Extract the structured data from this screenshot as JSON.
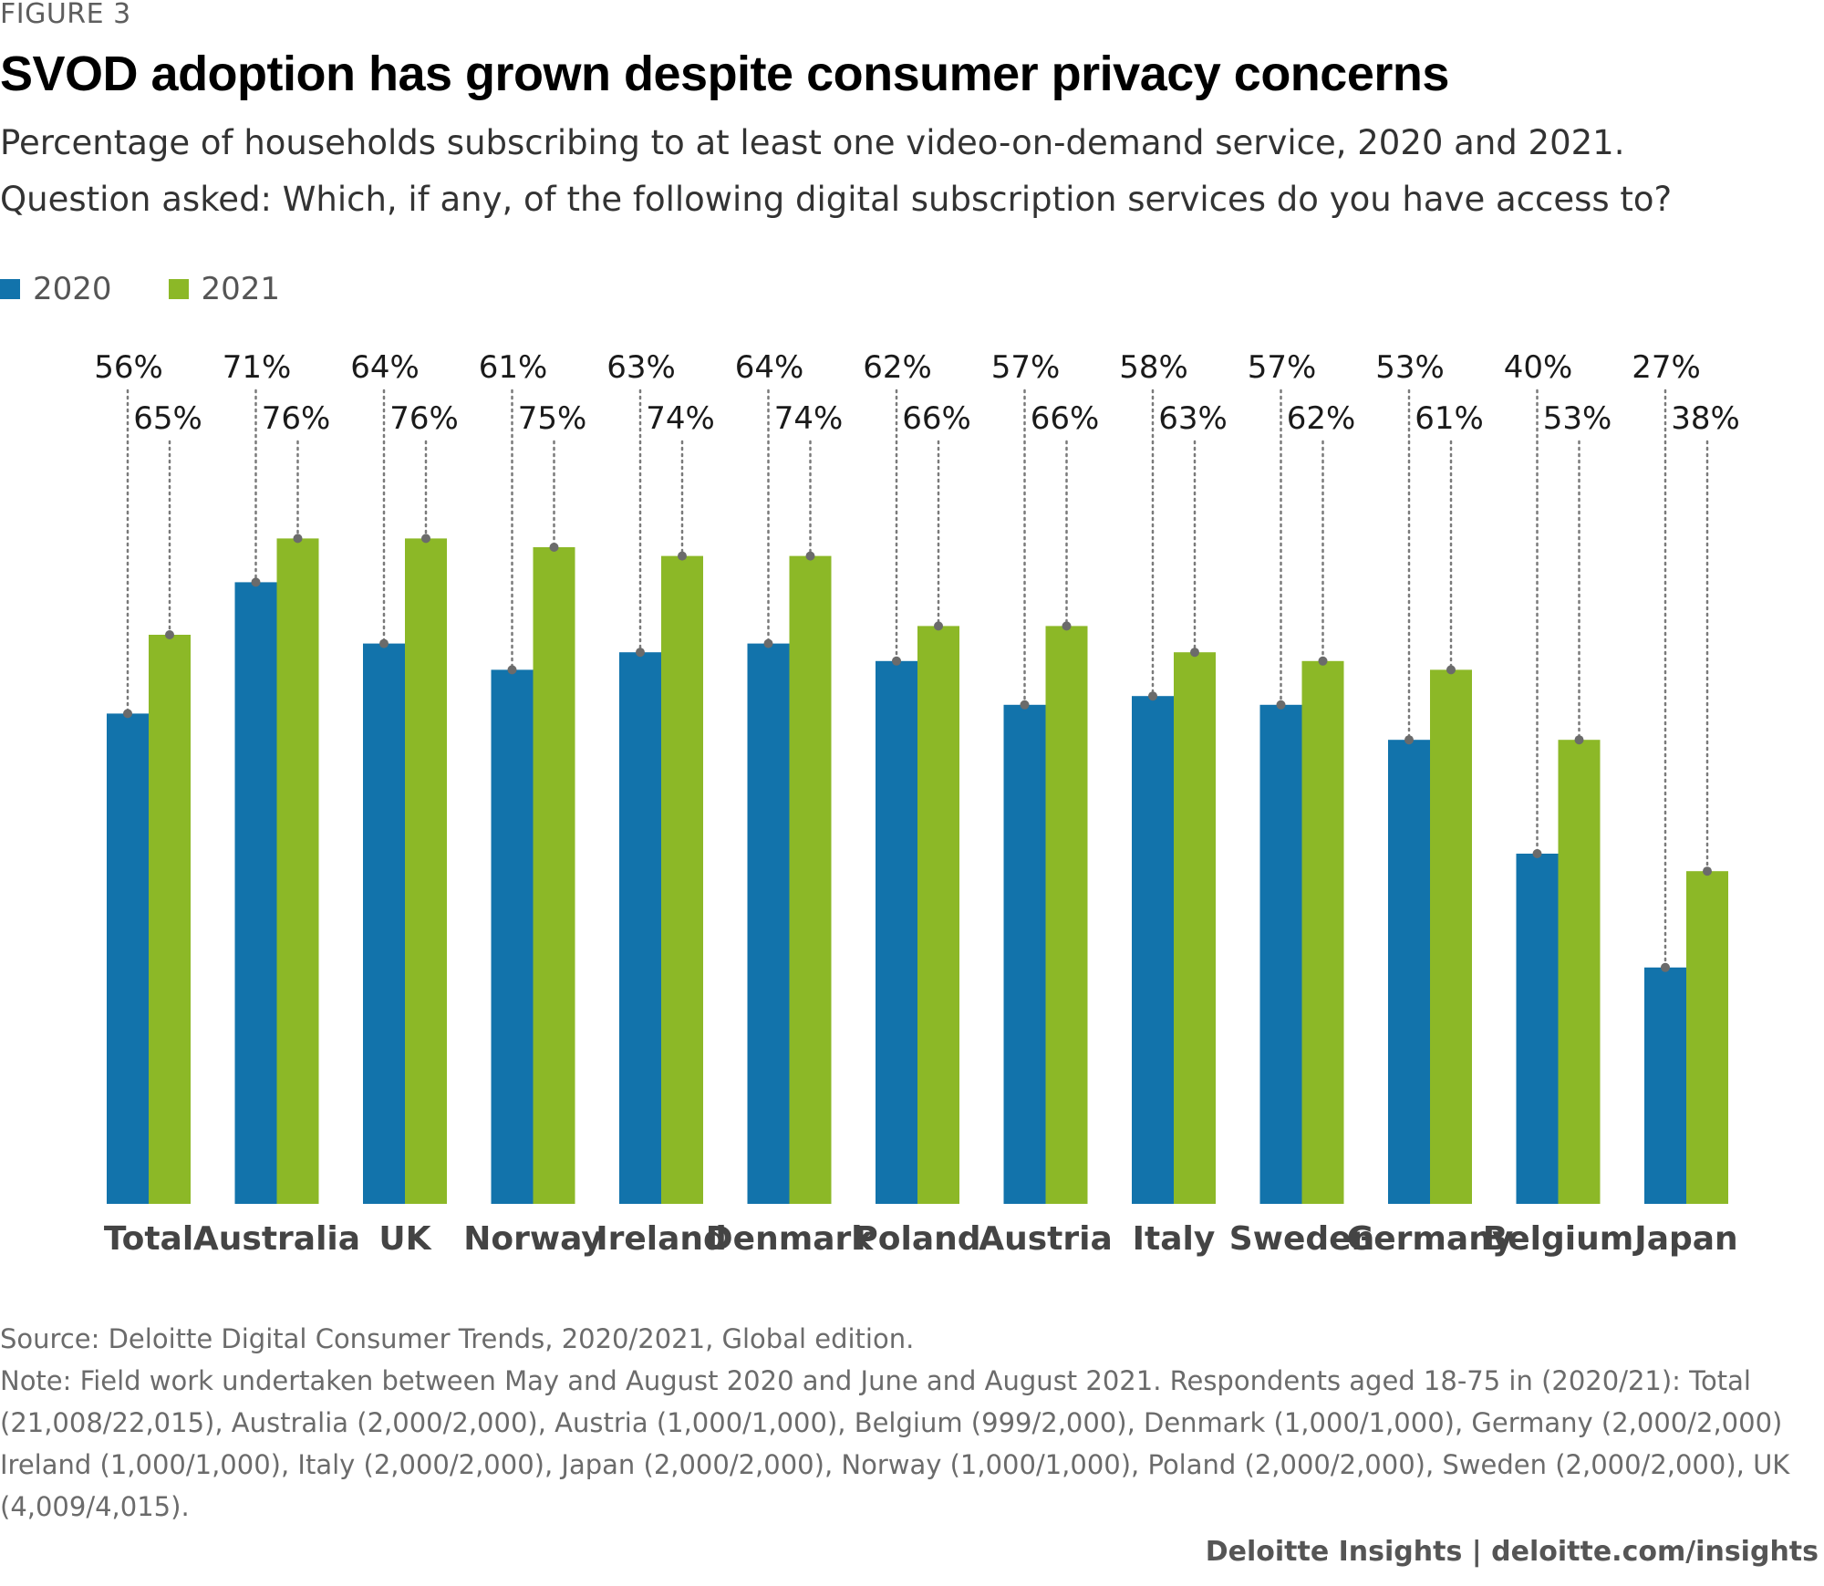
{
  "figure_label": "FIGURE 3",
  "title": "SVOD adoption has grown despite consumer privacy concerns",
  "subtitle_1": "Percentage of households subscribing to at least one video-on-demand service, 2020 and 2021.",
  "subtitle_2": "Question asked: Which, if any, of the following digital subscription services do you have access to?",
  "colors": {
    "series_2020": "#1273AB",
    "series_2021": "#8CB827",
    "marker": "#6b6b6b"
  },
  "chart_data": {
    "type": "bar",
    "title": "SVOD adoption has grown despite consumer privacy concerns",
    "xlabel": "",
    "ylabel": "",
    "ylim": [
      0,
      80
    ],
    "grid": false,
    "legend": "top-left",
    "categories": [
      "Total",
      "Australia",
      "UK",
      "Norway",
      "Ireland",
      "Denmark",
      "Poland",
      "Austria",
      "Italy",
      "Sweden",
      "Germany",
      "Belgium",
      "Japan"
    ],
    "series": [
      {
        "name": "2020",
        "values": [
          56,
          71,
          64,
          61,
          63,
          64,
          62,
          57,
          58,
          57,
          53,
          40,
          27
        ]
      },
      {
        "name": "2021",
        "values": [
          65,
          76,
          76,
          75,
          74,
          74,
          66,
          66,
          63,
          62,
          61,
          53,
          38
        ]
      }
    ],
    "value_suffix": "%"
  },
  "footer": {
    "source": "Source: Deloitte Digital Consumer Trends, 2020/2021, Global edition.",
    "note": "Note: Field work undertaken between May and August 2020 and June and August 2021. Respondents aged 18-75 in (2020/21): Total (21,008/22,015), Australia (2,000/2,000), Austria (1,000/1,000), Belgium (999/2,000), Denmark (1,000/1,000), Germany (2,000/2,000) Ireland (1,000/1,000), Italy (2,000/2,000), Japan (2,000/2,000), Norway (1,000/1,000), Poland (2,000/2,000), Sweden (2,000/2,000), UK (4,009/4,015).",
    "brand": "Deloitte Insights | deloitte.com/insights"
  }
}
